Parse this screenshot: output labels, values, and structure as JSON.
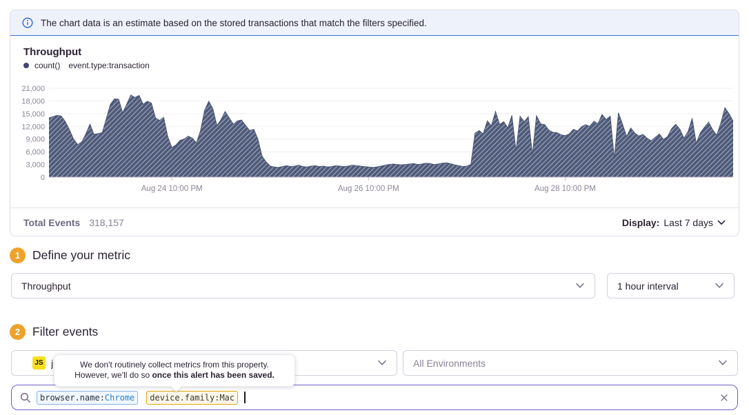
{
  "banner": {
    "text": "The chart data is an estimate based on the stored transactions that match the filters specified."
  },
  "chart_data": {
    "type": "area",
    "title": "Throughput",
    "legend": {
      "series": "count()",
      "query": "event.type:transaction"
    },
    "legend_position": "top-left",
    "grid": "horizontal",
    "fill_style": "hatched",
    "colors": {
      "area": "#4e5a7a",
      "hatch": "rgba(255,255,255,0.42)",
      "axis_text": "#8d8499"
    },
    "ylim": [
      0,
      21000
    ],
    "y_ticks": [
      0,
      3000,
      6000,
      9000,
      12000,
      15000,
      18000,
      21000
    ],
    "x_tick_labels": [
      "Aug 24 10:00 PM",
      "Aug 26 10:00 PM",
      "Aug 28 10:00 PM"
    ],
    "x_tick_indices": [
      30,
      78,
      126
    ],
    "series": [
      {
        "name": "count()",
        "values": [
          14000,
          14300,
          14600,
          14400,
          13100,
          11200,
          9000,
          7700,
          8300,
          10200,
          12500,
          10100,
          10300,
          10500,
          13800,
          17200,
          18500,
          18400,
          15200,
          17300,
          19400,
          18800,
          19300,
          17200,
          17900,
          17500,
          14000,
          13400,
          14100,
          9500,
          7000,
          7600,
          8700,
          9000,
          9700,
          9200,
          8100,
          11000,
          15800,
          17900,
          16200,
          12200,
          13600,
          15500,
          14000,
          12500,
          13300,
          13500,
          12200,
          11000,
          11300,
          9000,
          5000,
          3600,
          2600,
          2400,
          2300,
          2500,
          2700,
          2500,
          2600,
          2800,
          2500,
          2400,
          2600,
          2700,
          2500,
          2600,
          2400,
          2500,
          2700,
          2600,
          2500,
          2600,
          2800,
          2700,
          2600,
          2500,
          2400,
          2300,
          2400,
          2600,
          2800,
          3000,
          3100,
          3000,
          2900,
          3000,
          3100,
          3200,
          3000,
          3100,
          3300,
          3200,
          3000,
          3100,
          3300,
          3400,
          3200,
          2900,
          2700,
          2500,
          2600,
          3000,
          10400,
          11000,
          10200,
          13300,
          12100,
          15500,
          12400,
          13100,
          11600,
          14600,
          6200,
          14400,
          13100,
          14300,
          5300,
          14500,
          12600,
          12400,
          11100,
          10600,
          10500,
          10000,
          9800,
          10200,
          11300,
          10900,
          11900,
          12400,
          12000,
          13200,
          12600,
          14800,
          13600,
          14400,
          4400,
          15200,
          12500,
          9600,
          11600,
          10400,
          9700,
          10100,
          9200,
          8600,
          9400,
          10200,
          8900,
          9600,
          11500,
          12500,
          11300,
          9200,
          10800,
          13900,
          8000,
          10500,
          11800,
          13000,
          11200,
          9900,
          12800,
          16400,
          15000,
          13200
        ]
      }
    ]
  },
  "totals": {
    "label": "Total Events",
    "value": "318,157"
  },
  "display": {
    "label": "Display:",
    "value": "Last 7 days"
  },
  "sections": {
    "metric": {
      "number": "1",
      "title": "Define your metric"
    },
    "filter": {
      "number": "2",
      "title": "Filter events"
    }
  },
  "metric": {
    "aggregate": "Throughput",
    "interval": "1 hour interval"
  },
  "filter": {
    "project_badge": "JS",
    "project_label_visible": "j",
    "environment": "All Environments"
  },
  "tooltip": {
    "line1": "We don't routinely collect metrics from this property.",
    "line2_prefix": "However, we'll do so ",
    "line2_bold": "once this alert has been saved."
  },
  "search": {
    "tokens": [
      {
        "key": "browser.name:",
        "value": "Chrome"
      },
      {
        "key": "device.family:",
        "value": "Mac"
      }
    ]
  }
}
